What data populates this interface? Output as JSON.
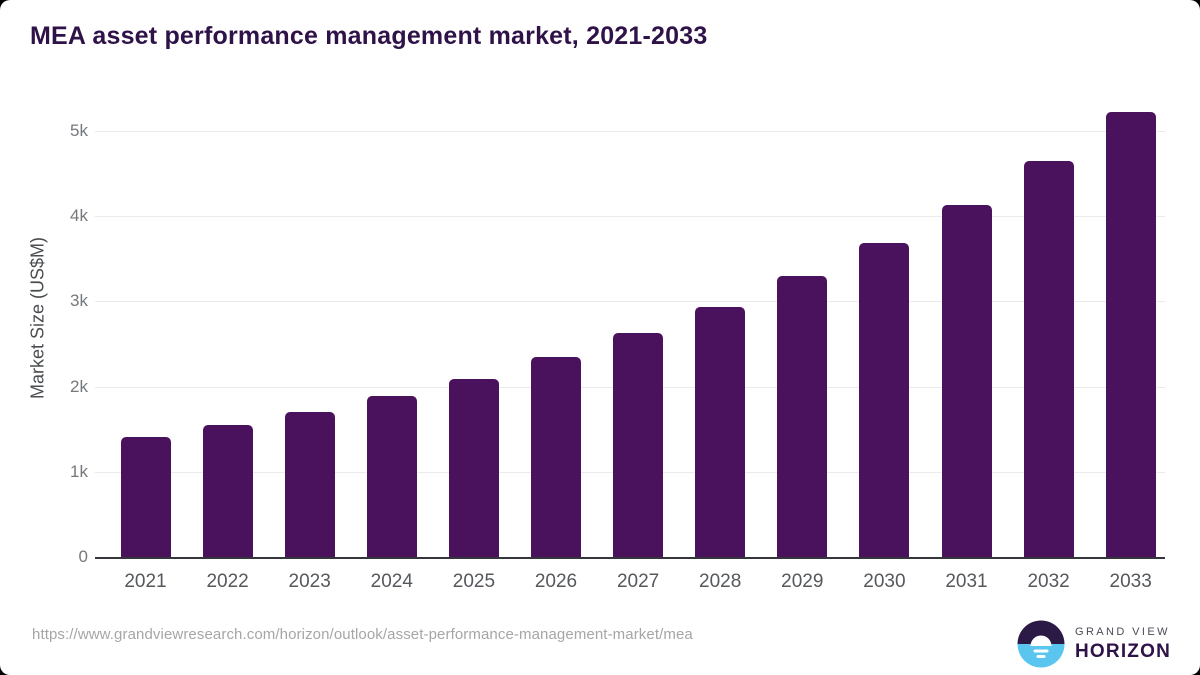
{
  "title": "MEA asset performance management market, 2021-2033",
  "chart_data": {
    "type": "bar",
    "title": "MEA asset performance management market, 2021-2033",
    "xlabel": "",
    "ylabel": "Market Size (US$M)",
    "categories": [
      "2021",
      "2022",
      "2023",
      "2024",
      "2025",
      "2026",
      "2027",
      "2028",
      "2029",
      "2030",
      "2031",
      "2032",
      "2033"
    ],
    "values": [
      1410,
      1545,
      1700,
      1890,
      2095,
      2345,
      2630,
      2930,
      3295,
      3685,
      4130,
      4650,
      5225
    ],
    "yticks": [
      {
        "value": 0,
        "label": "0"
      },
      {
        "value": 1000,
        "label": "1k"
      },
      {
        "value": 2000,
        "label": "2k"
      },
      {
        "value": 3000,
        "label": "3k"
      },
      {
        "value": 4000,
        "label": "4k"
      },
      {
        "value": 5000,
        "label": "5k"
      }
    ],
    "ylim": [
      0,
      5360
    ],
    "grid": true,
    "legend": "none",
    "bar_color": "#4a115c"
  },
  "footer": {
    "source_url": "https://www.grandviewresearch.com/horizon/outlook/asset-performance-management-market/mea",
    "logo": {
      "line1": "GRAND VIEW",
      "line2": "HORIZON"
    }
  },
  "colors": {
    "title": "#2e1248",
    "bar": "#4a115c",
    "gridline": "#ebebee",
    "axis_line": "#35353c",
    "tick_text": "#75787c",
    "xlabel_text": "#55585c",
    "url_text": "#a6a6a6",
    "logo_dark": "#2b1a45",
    "logo_blue": "#5ac6f0"
  }
}
